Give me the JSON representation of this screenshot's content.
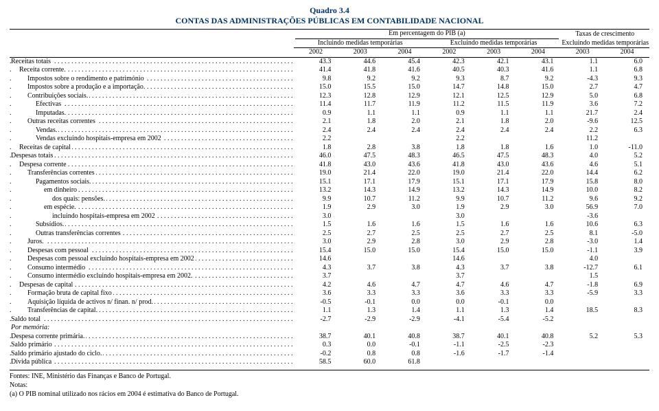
{
  "title_top": "Quadro 3.4",
  "title_main": "CONTAS DAS ADMINISTRAÇÕES PÚBLICAS EM CONTABILIDADE NACIONAL",
  "super_header": "Em percentagem do PIB (a)",
  "growth_header": "Taxas de crescimento",
  "group_incl": "Incluindo medidas temporárias",
  "group_excl": "Excluindo medidas temporárias",
  "group_excl2": "Excluindo medidas temporárias",
  "years_incl": [
    "2002",
    "2003",
    "2004"
  ],
  "years_excl": [
    "2002",
    "2003",
    "2004"
  ],
  "years_growth": [
    "2003",
    "2004"
  ],
  "rows": [
    {
      "label": "Receitas totais",
      "indent": 0,
      "v": [
        "43.3",
        "44.6",
        "45.4",
        "42.3",
        "42.1",
        "43.1",
        "1.1",
        "6.0"
      ]
    },
    {
      "label": "Receita corrente.",
      "indent": 1,
      "v": [
        "41.4",
        "41.8",
        "41.6",
        "40.5",
        "40.3",
        "41.6",
        "1.1",
        "6.8"
      ]
    },
    {
      "label": "Impostos sobre o rendimento e património",
      "indent": 2,
      "v": [
        "9.8",
        "9.2",
        "9.2",
        "9.3",
        "8.7",
        "9.2",
        "-4.3",
        "9.3"
      ]
    },
    {
      "label": "Impostos sobre a produção e a importação.",
      "indent": 2,
      "v": [
        "15.0",
        "15.5",
        "15.0",
        "14.7",
        "14.8",
        "15.0",
        "2.7",
        "4.7"
      ]
    },
    {
      "label": "Contribuições sociais.",
      "indent": 2,
      "v": [
        "12.3",
        "12.8",
        "12.9",
        "12.1",
        "12.5",
        "12.9",
        "5.0",
        "6.8"
      ]
    },
    {
      "label": "Efectivas",
      "indent": 3,
      "v": [
        "11.4",
        "11.7",
        "11.9",
        "11.2",
        "11.5",
        "11.9",
        "3.6",
        "7.2"
      ]
    },
    {
      "label": "Imputadas.",
      "indent": 3,
      "v": [
        "0.9",
        "1.1",
        "1.1",
        "0.9",
        "1.1",
        "1.1",
        "21.7",
        "2.4"
      ]
    },
    {
      "label": "Outras receitas correntes",
      "indent": 2,
      "v": [
        "2.1",
        "1.8",
        "2.0",
        "2.1",
        "1.8",
        "2.0",
        "-9.6",
        "12.5"
      ]
    },
    {
      "label": "Vendas.",
      "indent": 3,
      "v": [
        "2.4",
        "2.4",
        "2.4",
        "2.4",
        "2.4",
        "2.4",
        "2.2",
        "6.3"
      ]
    },
    {
      "label": "Vendas excluindo hospitais-empresa em 2002",
      "indent": 3,
      "v": [
        "2.2",
        "",
        "",
        "2.2",
        "",
        "",
        "11.2",
        ""
      ]
    },
    {
      "label": "Receitas de capital",
      "indent": 1,
      "v": [
        "1.8",
        "2.8",
        "3.8",
        "1.8",
        "1.8",
        "1.6",
        "1.0",
        "-11.0"
      ]
    },
    {
      "label": "Despesas totais",
      "indent": 0,
      "v": [
        "46.0",
        "47.5",
        "48.3",
        "46.5",
        "47.5",
        "48.3",
        "4.0",
        "5.2"
      ]
    },
    {
      "label": "Despesa corrente",
      "indent": 1,
      "v": [
        "41.8",
        "43.0",
        "43.6",
        "41.8",
        "43.0",
        "43.6",
        "4.6",
        "5.1"
      ]
    },
    {
      "label": "Transferências correntes",
      "indent": 2,
      "v": [
        "19.0",
        "21.4",
        "22.0",
        "19.0",
        "21.4",
        "22.0",
        "14.4",
        "6.2"
      ]
    },
    {
      "label": "Pagamentos sociais.",
      "indent": 3,
      "v": [
        "15.1",
        "17.1",
        "17.9",
        "15.1",
        "17.1",
        "17.9",
        "15.8",
        "8.0"
      ]
    },
    {
      "label": "em dinheiro",
      "indent": 4,
      "v": [
        "13.2",
        "14.3",
        "14.9",
        "13.2",
        "14.3",
        "14.9",
        "10.0",
        "8.2"
      ]
    },
    {
      "label": "dos quais: pensões.",
      "indent": 5,
      "v": [
        "9.9",
        "10.7",
        "11.2",
        "9.9",
        "10.7",
        "11.2",
        "9.6",
        "9.2"
      ]
    },
    {
      "label": "em espécie.",
      "indent": 4,
      "v": [
        "1.9",
        "2.9",
        "3.0",
        "1.9",
        "2.9",
        "3.0",
        "56.9",
        "7.0"
      ]
    },
    {
      "label": "incluindo hospitais-empresa em 2002",
      "indent": 5,
      "v": [
        "3.0",
        "",
        "",
        "3.0",
        "",
        "",
        "-3.6",
        ""
      ]
    },
    {
      "label": "Subsídios.",
      "indent": 3,
      "v": [
        "1.5",
        "1.6",
        "1.6",
        "1.5",
        "1.6",
        "1.6",
        "10.6",
        "6.3"
      ]
    },
    {
      "label": "Outras transferências correntes",
      "indent": 3,
      "v": [
        "2.5",
        "2.7",
        "2.5",
        "2.5",
        "2.7",
        "2.5",
        "8.1",
        "-5.0"
      ]
    },
    {
      "label": "Juros.",
      "indent": 2,
      "v": [
        "3.0",
        "2.9",
        "2.8",
        "3.0",
        "2.9",
        "2.8",
        "-3.0",
        "1.4"
      ]
    },
    {
      "label": "Despesas com pessoal",
      "indent": 2,
      "v": [
        "15.4",
        "15.0",
        "15.0",
        "15.4",
        "15.0",
        "15.0",
        "-1.1",
        "3.9"
      ]
    },
    {
      "label": "Despesas com pessoal excluindo hospitais-empresa em 2002",
      "indent": 2,
      "v": [
        "14.6",
        "",
        "",
        "14.6",
        "",
        "",
        "4.0",
        ""
      ]
    },
    {
      "label": "Consumo intermédio",
      "indent": 2,
      "v": [
        "4.3",
        "3.7",
        "3.8",
        "4.3",
        "3.7",
        "3.8",
        "-12.7",
        "6.1"
      ]
    },
    {
      "label": "Consumo intermédio excluindo hospitais-empresa em 2002.",
      "indent": 2,
      "v": [
        "3.7",
        "",
        "",
        "3.7",
        "",
        "",
        "1.5",
        ""
      ]
    },
    {
      "label": "Despesas de capital",
      "indent": 1,
      "v": [
        "4.2",
        "4.6",
        "4.7",
        "4.7",
        "4.6",
        "4.7",
        "-1.8",
        "6.9"
      ]
    },
    {
      "label": "Formação bruta de capital fixo",
      "indent": 2,
      "v": [
        "3.6",
        "3.3",
        "3.3",
        "3.6",
        "3.3",
        "3.3",
        "-5.9",
        "3.3"
      ]
    },
    {
      "label": "Aquisição líquida de activos n/ finan. n/ prod.",
      "indent": 2,
      "v": [
        "-0.5",
        "-0.1",
        "0.0",
        "0.0",
        "-0.1",
        "0.0",
        "",
        ""
      ]
    },
    {
      "label": "Transferências de capital.",
      "indent": 2,
      "v": [
        "1.1",
        "1.3",
        "1.4",
        "1.1",
        "1.3",
        "1.4",
        "18.5",
        "8.3"
      ]
    },
    {
      "label": "Saldo total",
      "indent": 0,
      "v": [
        "-2.7",
        "-2.9",
        "-2.9",
        "-4.1",
        "-5.4",
        "-5.2",
        "",
        ""
      ]
    },
    {
      "label": "Por memória:",
      "indent": 0,
      "italic": true,
      "nodots": true,
      "v": [
        "",
        "",
        "",
        "",
        "",
        "",
        "",
        ""
      ]
    },
    {
      "label": "Despesa corrente primária.",
      "indent": 0,
      "v": [
        "38.7",
        "40.1",
        "40.8",
        "38.7",
        "40.1",
        "40.8",
        "5.2",
        "5.3"
      ]
    },
    {
      "label": "Saldo primário",
      "indent": 0,
      "v": [
        "0.3",
        "0.0",
        "-0.1",
        "-1.1",
        "-2.5",
        "-2.3",
        "",
        ""
      ]
    },
    {
      "label": "Saldo primário ajustado do ciclo.",
      "indent": 0,
      "v": [
        "-0.2",
        "0.8",
        "0.8",
        "-1.6",
        "-1.7",
        "-1.4",
        "",
        ""
      ]
    },
    {
      "label": "Dívida pública",
      "indent": 0,
      "v": [
        "58.5",
        "60.0",
        "61.8",
        "",
        "",
        "",
        "",
        ""
      ]
    }
  ],
  "foot1": "Fontes: INE, Ministério das Finanças e Banco de Portugal.",
  "foot2": "Notas:",
  "foot3": "(a) O PIB nominal utilizado nos rácios em 2004 é estimativa do Banco de Portugal.",
  "colors": {
    "title": "#003366",
    "text": "#000000",
    "bg": "#ffffff"
  }
}
